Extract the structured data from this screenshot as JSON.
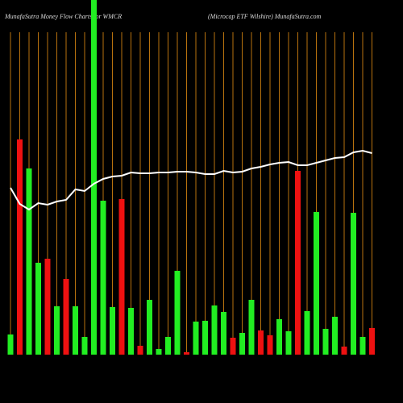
{
  "chart_data": {
    "type": "bar",
    "title": "MunafaSutra  Money Flow  Charts for WMCR",
    "subtitle": "(Microcap ETF Wilshire) MunafaSutra.com",
    "categories": [
      null,
      null,
      null,
      null,
      null,
      null,
      null,
      null,
      null,
      null,
      null,
      null,
      null,
      null,
      null,
      null,
      null,
      null,
      null,
      null,
      null,
      null,
      null,
      null,
      null,
      null,
      null,
      null,
      null,
      null,
      null,
      null,
      null,
      null,
      null,
      null,
      null,
      null,
      null,
      null
    ],
    "values": [
      25,
      267,
      231,
      114,
      119,
      60,
      94,
      60,
      22,
      450,
      191,
      59,
      193,
      58,
      11,
      68,
      7,
      22,
      104,
      3,
      41,
      42,
      61,
      53,
      21,
      27,
      68,
      30,
      24,
      44,
      29,
      228,
      54,
      177,
      32,
      47,
      10,
      176,
      22,
      33
    ],
    "colors": [
      "#22ee22",
      "#ee1111",
      "#22ee22",
      "#22ee22",
      "#ee1111",
      "#22ee22",
      "#ee1111",
      "#22ee22",
      "#22ee22",
      "#22ee22",
      "#22ee22",
      "#22ee22",
      "#ee1111",
      "#22ee22",
      "#ee1111",
      "#22ee22",
      "#22ee22",
      "#22ee22",
      "#22ee22",
      "#ee1111",
      "#22ee22",
      "#22ee22",
      "#22ee22",
      "#22ee22",
      "#ee1111",
      "#22ee22",
      "#22ee22",
      "#ee1111",
      "#ee1111",
      "#22ee22",
      "#22ee22",
      "#ee1111",
      "#22ee22",
      "#22ee22",
      "#22ee22",
      "#22ee22",
      "#ee1111",
      "#22ee22",
      "#22ee22",
      "#ee1111"
    ],
    "line": {
      "color": "#ffffff",
      "values": [
        207,
        187,
        180,
        188,
        186,
        190,
        192,
        205,
        203,
        212,
        218,
        221,
        222,
        226,
        225,
        225,
        226,
        226,
        227,
        227,
        226,
        224,
        224,
        228,
        226,
        227,
        231,
        233,
        236,
        238,
        239,
        235,
        235,
        238,
        241,
        244,
        245,
        251,
        253,
        250
      ]
    },
    "ylim": [
      0,
      440
    ]
  }
}
